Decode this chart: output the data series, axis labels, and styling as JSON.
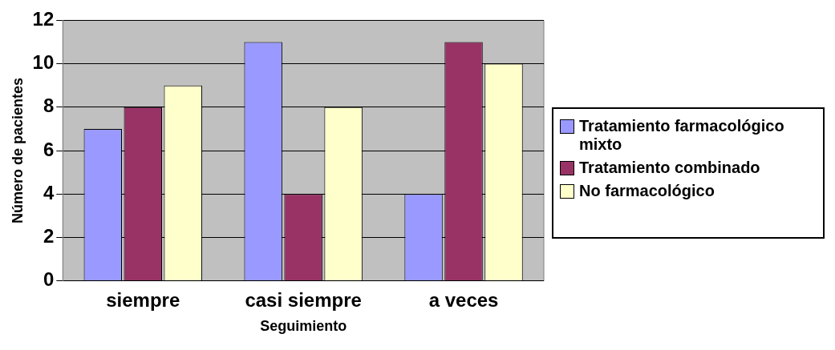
{
  "chart_data": {
    "type": "bar",
    "xlabel": "Seguimiento",
    "ylabel": "Número de pacientes",
    "categories": [
      "siempre",
      "casi siempre",
      "a veces"
    ],
    "series": [
      {
        "name": "Tratamiento farmacológico  mixto",
        "color": "#9999ff",
        "values": [
          7,
          11,
          4
        ]
      },
      {
        "name": "Tratamiento combinado",
        "color": "#993366",
        "values": [
          8,
          4,
          11
        ]
      },
      {
        "name": "No farmacológico",
        "color": "#ffffcc",
        "values": [
          9,
          8,
          10
        ]
      }
    ],
    "ylim": [
      0,
      12
    ],
    "yticks": [
      0,
      2,
      4,
      6,
      8,
      10,
      12
    ],
    "grid": "y",
    "legend": "right"
  }
}
